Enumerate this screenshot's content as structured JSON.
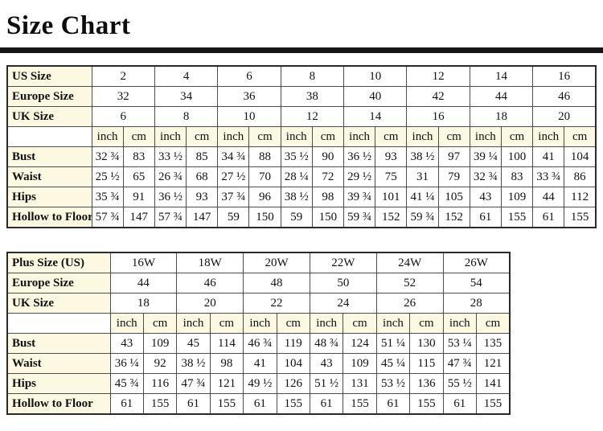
{
  "page": {
    "title": "Size Chart"
  },
  "colors": {
    "header_bg": "#fcf8e2",
    "rule": "#161616",
    "border": "#4d4d4d"
  },
  "tables": [
    {
      "name": "standard-sizes",
      "num_pairs": 8,
      "unit_header": [
        "inch",
        "cm"
      ],
      "size_rows": [
        {
          "label": "US Size",
          "values": [
            "2",
            "4",
            "6",
            "8",
            "10",
            "12",
            "14",
            "16"
          ]
        },
        {
          "label": "Europe Size",
          "values": [
            "32",
            "34",
            "36",
            "38",
            "40",
            "42",
            "44",
            "46"
          ]
        },
        {
          "label": "UK Size",
          "values": [
            "6",
            "8",
            "10",
            "12",
            "14",
            "16",
            "18",
            "20"
          ]
        }
      ],
      "measure_rows": [
        {
          "label": "Bust",
          "values": [
            "32 ¾",
            "83",
            "33 ½",
            "85",
            "34 ¾",
            "88",
            "35 ½",
            "90",
            "36 ½",
            "93",
            "38 ½",
            "97",
            "39 ¼",
            "100",
            "41",
            "104"
          ]
        },
        {
          "label": "Waist",
          "values": [
            "25 ½",
            "65",
            "26 ¾",
            "68",
            "27 ½",
            "70",
            "28 ¼",
            "72",
            "29 ½",
            "75",
            "31",
            "79",
            "32 ¾",
            "83",
            "33 ¾",
            "86"
          ]
        },
        {
          "label": "Hips",
          "values": [
            "35 ¾",
            "91",
            "36 ½",
            "93",
            "37 ¾",
            "96",
            "38 ½",
            "98",
            "39 ¾",
            "101",
            "41 ¼",
            "105",
            "43",
            "109",
            "44",
            "112"
          ]
        },
        {
          "label": "Hollow to Floor",
          "values": [
            "57 ¾",
            "147",
            "57 ¾",
            "147",
            "59",
            "150",
            "59",
            "150",
            "59 ¾",
            "152",
            "59 ¾",
            "152",
            "61",
            "155",
            "61",
            "155"
          ]
        }
      ]
    },
    {
      "name": "plus-sizes",
      "num_pairs": 6,
      "unit_header": [
        "inch",
        "cm"
      ],
      "size_rows": [
        {
          "label": "Plus Size (US)",
          "values": [
            "16W",
            "18W",
            "20W",
            "22W",
            "24W",
            "26W"
          ]
        },
        {
          "label": "Europe Size",
          "values": [
            "44",
            "46",
            "48",
            "50",
            "52",
            "54"
          ]
        },
        {
          "label": "UK Size",
          "values": [
            "18",
            "20",
            "22",
            "24",
            "26",
            "28"
          ]
        }
      ],
      "measure_rows": [
        {
          "label": "Bust",
          "values": [
            "43",
            "109",
            "45",
            "114",
            "46 ¾",
            "119",
            "48 ¾",
            "124",
            "51 ¼",
            "130",
            "53 ¼",
            "135"
          ]
        },
        {
          "label": "Waist",
          "values": [
            "36 ¼",
            "92",
            "38 ½",
            "98",
            "41",
            "104",
            "43",
            "109",
            "45 ¼",
            "115",
            "47 ¾",
            "121"
          ]
        },
        {
          "label": "Hips",
          "values": [
            "45 ¾",
            "116",
            "47 ¾",
            "121",
            "49 ½",
            "126",
            "51 ½",
            "131",
            "53 ½",
            "136",
            "55 ½",
            "141"
          ]
        },
        {
          "label": "Hollow to Floor",
          "values": [
            "61",
            "155",
            "61",
            "155",
            "61",
            "155",
            "61",
            "155",
            "61",
            "155",
            "61",
            "155"
          ]
        }
      ]
    }
  ]
}
